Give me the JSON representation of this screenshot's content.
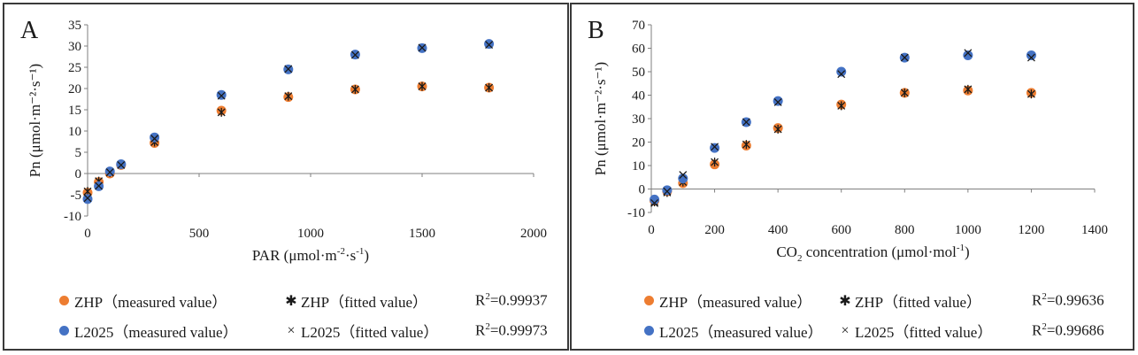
{
  "colors": {
    "zhp": "#ED7D31",
    "l2025": "#4472C4",
    "marker": "#1a1a1a",
    "axis": "#7f7f7f",
    "border": "#3a3a3a"
  },
  "chart_data": [
    {
      "panel": "A",
      "type": "scatter",
      "xlabel_main": "PAR (μmol·m",
      "xlabel_sup1": "-2",
      "xlabel_mid": "·s",
      "xlabel_sup2": "-1",
      "xlabel_end": ")",
      "ylabel": "Pn (μmol·m⁻²·s⁻¹)",
      "xlim": [
        0,
        2000
      ],
      "ylim": [
        -10,
        35
      ],
      "xticks": [
        0,
        500,
        1000,
        1500,
        2000
      ],
      "yticks": [
        -10,
        -5,
        0,
        5,
        10,
        15,
        20,
        25,
        30,
        35
      ],
      "series": [
        {
          "name": "ZHP（measured value）",
          "marker": "dot",
          "color": "#ED7D31",
          "x": [
            0,
            50,
            100,
            150,
            300,
            600,
            900,
            1200,
            1500,
            1800
          ],
          "y": [
            -4.5,
            -2.0,
            0.0,
            2.0,
            7.2,
            14.8,
            18.0,
            19.8,
            20.5,
            20.2
          ]
        },
        {
          "name": "ZHP（fitted value）",
          "marker": "star",
          "x": [
            0,
            50,
            100,
            150,
            300,
            600,
            900,
            1200,
            1500,
            1800
          ],
          "y": [
            -4.2,
            -1.8,
            0.2,
            2.1,
            7.4,
            14.4,
            18.2,
            19.8,
            20.5,
            20.2
          ]
        },
        {
          "name": "L2025（measured value）",
          "marker": "dot",
          "color": "#4472C4",
          "x": [
            0,
            50,
            100,
            150,
            300,
            600,
            900,
            1200,
            1500,
            1800
          ],
          "y": [
            -6.0,
            -3.0,
            0.5,
            2.2,
            8.5,
            18.5,
            24.5,
            28.0,
            29.5,
            30.5
          ]
        },
        {
          "name": "L2025（fitted value）",
          "marker": "cross",
          "x": [
            0,
            50,
            100,
            150,
            300,
            600,
            900,
            1200,
            1500,
            1800
          ],
          "y": [
            -5.8,
            -2.9,
            0.3,
            2.0,
            8.2,
            18.3,
            24.6,
            27.9,
            29.6,
            30.3
          ]
        }
      ],
      "legend": {
        "zhp_measured": "ZHP（measured value）",
        "zhp_fitted": "ZHP（fitted value）",
        "l2025_measured": "L2025（measured value）",
        "l2025_fitted": "L2025（fitted value）",
        "r2_zhp": "=0.99937",
        "r2_l2025": "=0.99973"
      }
    },
    {
      "panel": "B",
      "type": "scatter",
      "xlabel_main": "CO",
      "xlabel_sub": "2",
      "xlabel_mid": " concentration (μmol·mol",
      "xlabel_sup2": "-1",
      "xlabel_end": ")",
      "ylabel": "Pn (μmol·m⁻²·s⁻¹)",
      "xlim": [
        0,
        1400
      ],
      "ylim": [
        -10,
        70
      ],
      "xticks": [
        0,
        200,
        400,
        600,
        800,
        1000,
        1200,
        1400
      ],
      "yticks": [
        -10,
        0,
        10,
        20,
        30,
        40,
        50,
        60,
        70
      ],
      "series": [
        {
          "name": "ZHP（measured value）",
          "marker": "dot",
          "color": "#ED7D31",
          "x": [
            10,
            50,
            100,
            200,
            300,
            400,
            600,
            800,
            1000,
            1200
          ],
          "y": [
            -5.0,
            -1.0,
            2.5,
            10.5,
            18.5,
            26.0,
            36.0,
            41.0,
            42.0,
            41.0
          ]
        },
        {
          "name": "ZHP（fitted value）",
          "marker": "star",
          "x": [
            10,
            50,
            100,
            200,
            300,
            400,
            600,
            800,
            1000,
            1200
          ],
          "y": [
            -5.5,
            -1.5,
            3.0,
            11.5,
            19.0,
            25.5,
            35.5,
            41.0,
            42.5,
            40.5
          ]
        },
        {
          "name": "L2025（measured value）",
          "marker": "dot",
          "color": "#4472C4",
          "x": [
            10,
            50,
            100,
            200,
            300,
            400,
            600,
            800,
            1000,
            1200
          ],
          "y": [
            -4.5,
            -0.5,
            4.5,
            17.5,
            28.5,
            37.5,
            50.0,
            56.0,
            57.0,
            57.0
          ]
        },
        {
          "name": "L2025（fitted value）",
          "marker": "cross",
          "x": [
            10,
            50,
            100,
            200,
            300,
            400,
            600,
            800,
            1000,
            1200
          ],
          "y": [
            -6.0,
            -1.0,
            6.0,
            18.0,
            28.5,
            37.0,
            49.0,
            56.0,
            58.0,
            56.0
          ]
        }
      ],
      "legend": {
        "zhp_measured": "ZHP（measured value）",
        "zhp_fitted": "ZHP（fitted value）",
        "l2025_measured": "L2025（measured value）",
        "l2025_fitted": "L2025（fitted value）",
        "r2_zhp": "=0.99636",
        "r2_l2025": "=0.99686"
      }
    }
  ]
}
